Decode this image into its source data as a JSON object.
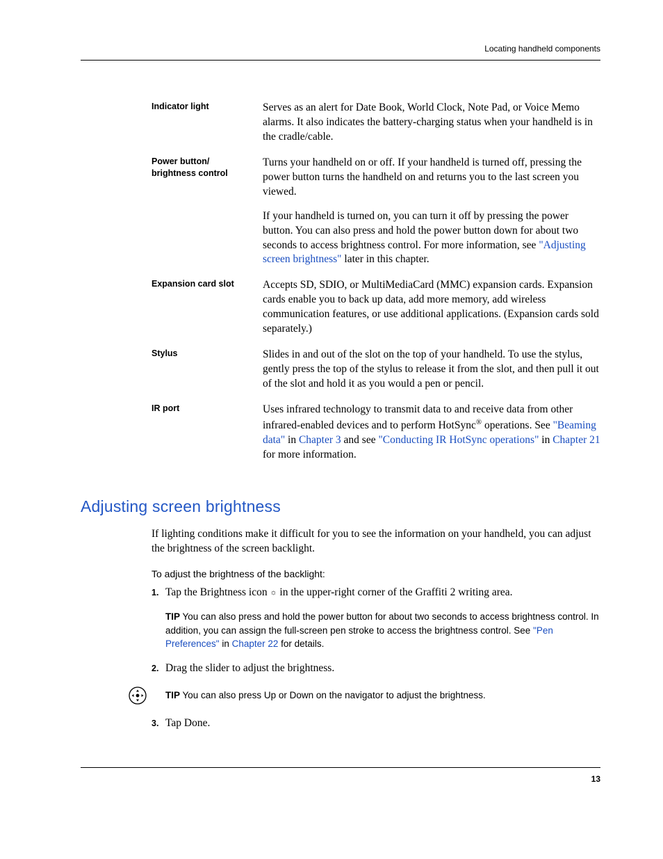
{
  "header": {
    "section": "Locating handheld components"
  },
  "definitions": [
    {
      "term": "Indicator light",
      "paras": [
        {
          "segments": [
            {
              "t": "Serves as an alert for Date Book, World Clock, Note Pad, or Voice Memo alarms. It also indicates the battery-charging status when your handheld is in the cradle/cable."
            }
          ]
        }
      ]
    },
    {
      "term": "Power button/ brightness control",
      "paras": [
        {
          "segments": [
            {
              "t": "Turns your handheld on or off. If your handheld is turned off, pressing the power button turns the handheld on and returns you to the last screen you viewed."
            }
          ]
        },
        {
          "segments": [
            {
              "t": "If your handheld is turned on, you can turn it off by pressing the power button. You can also press and hold the power button down for about two seconds to access brightness control. For more information, see "
            },
            {
              "t": "\"Adjusting screen brightness\"",
              "link": true
            },
            {
              "t": " later in this chapter."
            }
          ]
        }
      ]
    },
    {
      "term": "Expansion card slot",
      "paras": [
        {
          "segments": [
            {
              "t": "Accepts SD, SDIO, or MultiMediaCard (MMC) expansion cards. Expansion cards enable you to back up data, add more memory, add wireless communication features, or use additional applications. (Expansion cards sold separately.)"
            }
          ]
        }
      ]
    },
    {
      "term": "Stylus",
      "paras": [
        {
          "segments": [
            {
              "t": "Slides in and out of the slot on the top of your handheld. To use the stylus, gently press the top of the stylus to release it from the slot, and then pull it out of the slot and hold it as you would a pen or pencil."
            }
          ]
        }
      ]
    },
    {
      "term": "IR port",
      "paras": [
        {
          "segments": [
            {
              "t": "Uses infrared technology to transmit data to and receive data from other infrared-enabled devices and to perform HotSync"
            },
            {
              "t": "®",
              "sup": true
            },
            {
              "t": " operations. See "
            },
            {
              "t": "\"Beaming data\"",
              "link": true
            },
            {
              "t": " in "
            },
            {
              "t": "Chapter 3",
              "link": true
            },
            {
              "t": " and see "
            },
            {
              "t": "\"Conducting IR HotSync operations\"",
              "link": true
            },
            {
              "t": " in "
            },
            {
              "t": "Chapter 21",
              "link": true
            },
            {
              "t": " for more information."
            }
          ]
        }
      ]
    }
  ],
  "section": {
    "heading": "Adjusting screen brightness",
    "intro": "If lighting conditions make it difficult for you to see the information on your handheld, you can adjust the brightness of the screen backlight.",
    "sub_heading": "To adjust the brightness of the backlight:",
    "steps": [
      {
        "num": "1.",
        "segments": [
          {
            "t": "Tap the Brightness icon "
          },
          {
            "t": "☼",
            "glyph": true
          },
          {
            "t": " in the upper-right corner of the Graffiti 2 writing area."
          }
        ]
      },
      {
        "num": "2.",
        "segments": [
          {
            "t": "Drag the slider to adjust the brightness."
          }
        ]
      },
      {
        "num": "3.",
        "segments": [
          {
            "t": "Tap Done."
          }
        ]
      }
    ],
    "tip1": {
      "label": "TIP",
      "segments": [
        {
          "t": " You can also press and hold the power button for about two seconds to access brightness control. In addition, you can assign the full-screen pen stroke to access the brightness control. See "
        },
        {
          "t": "\"Pen Preferences\"",
          "link": true
        },
        {
          "t": " in "
        },
        {
          "t": "Chapter 22",
          "link": true
        },
        {
          "t": " for details."
        }
      ]
    },
    "tip2": {
      "label": "TIP",
      "text": " You can also press Up or Down on the navigator to adjust the brightness."
    }
  },
  "footer": {
    "page_number": "13"
  },
  "colors": {
    "link": "#1a4ec0",
    "heading": "#2357c5"
  }
}
